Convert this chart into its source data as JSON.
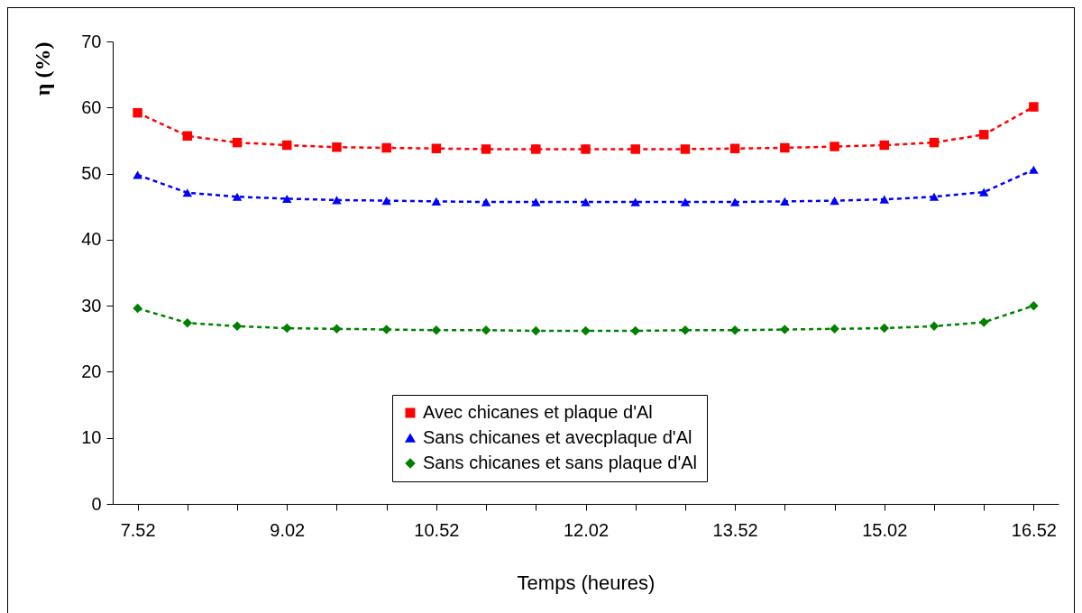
{
  "chart_data": {
    "type": "line",
    "xlabel": "Temps (heures)",
    "ylabel": "η (%)",
    "x": [
      7.52,
      8.02,
      8.52,
      9.02,
      9.52,
      10.02,
      10.52,
      11.02,
      11.52,
      12.02,
      12.52,
      13.02,
      13.52,
      14.02,
      14.52,
      15.02,
      15.52,
      16.02,
      16.52
    ],
    "series": [
      {
        "name": "Avec chicanes et plaque d'Al",
        "color": "#ff0000",
        "marker": "square",
        "values": [
          59.2,
          55.7,
          54.7,
          54.3,
          54.0,
          53.9,
          53.8,
          53.7,
          53.7,
          53.7,
          53.7,
          53.7,
          53.8,
          53.9,
          54.1,
          54.3,
          54.7,
          55.9,
          60.1
        ]
      },
      {
        "name": "Sans chicanes et avecplaque d'Al",
        "color": "#0000ff",
        "marker": "triangle",
        "values": [
          49.8,
          47.1,
          46.5,
          46.2,
          46.0,
          45.9,
          45.8,
          45.7,
          45.7,
          45.7,
          45.7,
          45.7,
          45.7,
          45.8,
          45.9,
          46.1,
          46.5,
          47.2,
          50.6
        ]
      },
      {
        "name": "Sans chicanes et sans plaque d'Al",
        "color": "#008000",
        "marker": "diamond",
        "values": [
          29.6,
          27.4,
          26.9,
          26.6,
          26.5,
          26.4,
          26.3,
          26.3,
          26.2,
          26.2,
          26.2,
          26.3,
          26.3,
          26.4,
          26.5,
          26.6,
          26.9,
          27.5,
          30.0
        ]
      }
    ],
    "xlim": [
      7.27,
      16.77
    ],
    "xticks": [
      7.52,
      {
        "value": 8.02,
        "label": null
      },
      {
        "value": 8.52,
        "label": null
      },
      9.02,
      {
        "value": 9.52,
        "label": null
      },
      {
        "value": 10.02,
        "label": null
      },
      10.52,
      {
        "value": 11.02,
        "label": null
      },
      {
        "value": 11.52,
        "label": null
      },
      12.02,
      {
        "value": 12.52,
        "label": null
      },
      {
        "value": 13.02,
        "label": null
      },
      13.52,
      {
        "value": 14.02,
        "label": null
      },
      {
        "value": 14.52,
        "label": null
      },
      15.02,
      {
        "value": 15.52,
        "label": null
      },
      {
        "value": 16.02,
        "label": null
      },
      16.52
    ],
    "ylim": [
      0,
      70
    ],
    "yticks": [
      0,
      10,
      20,
      30,
      40,
      50,
      60,
      70
    ],
    "grid": false,
    "legend": "bottom",
    "line_style": "dashed"
  }
}
